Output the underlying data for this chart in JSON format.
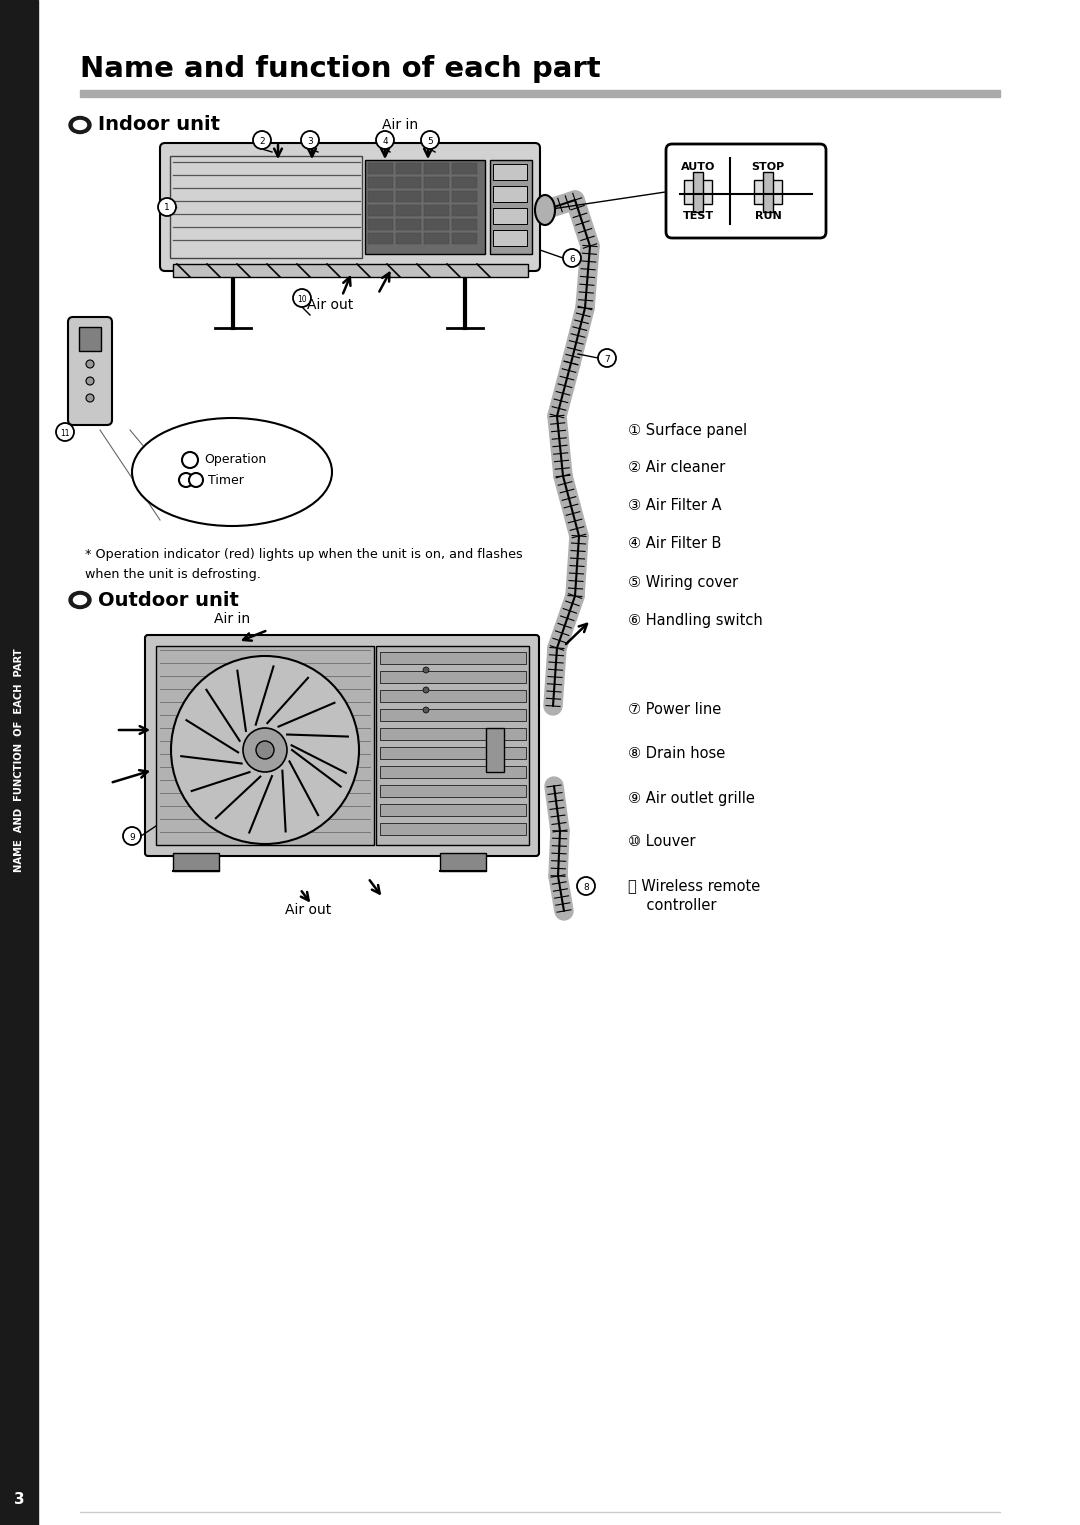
{
  "title": "Name and function of each part",
  "bg_color": "#ffffff",
  "section_indoor": "Indoor unit",
  "section_outdoor": "Outdoor unit",
  "air_in": "Air in",
  "air_out": "Air out",
  "indicator_note_line1": "* Operation indicator (red) lights up when the unit is on, and flashes",
  "indicator_note_line2": "when the unit is defrosting.",
  "operation_label": "Operation",
  "timer_label": "Timer",
  "auto_label": "AUTO",
  "stop_label": "STOP",
  "test_label": "TEST",
  "run_label": "RUN",
  "parts_indoor": [
    "① Surface panel",
    "② Air cleaner",
    "③ Air Filter A",
    "④ Air Filter B",
    "⑤ Wiring cover",
    "⑥ Handling switch"
  ],
  "parts_outdoor_1": [
    "⑦ Power line",
    "⑧ Drain hose",
    "⑨ Air outlet grille",
    "⑩ Louver",
    "⑪ Wireless remote"
  ],
  "parts_outdoor_2": [
    "",
    "",
    "",
    "",
    "    controller"
  ],
  "gray_bar_color": "#aaaaaa",
  "sidebar_bg": "#1a1a1a",
  "sidebar_text": "NAME  AND  FUNCTION  OF  EACH  PART",
  "page_number": "3"
}
